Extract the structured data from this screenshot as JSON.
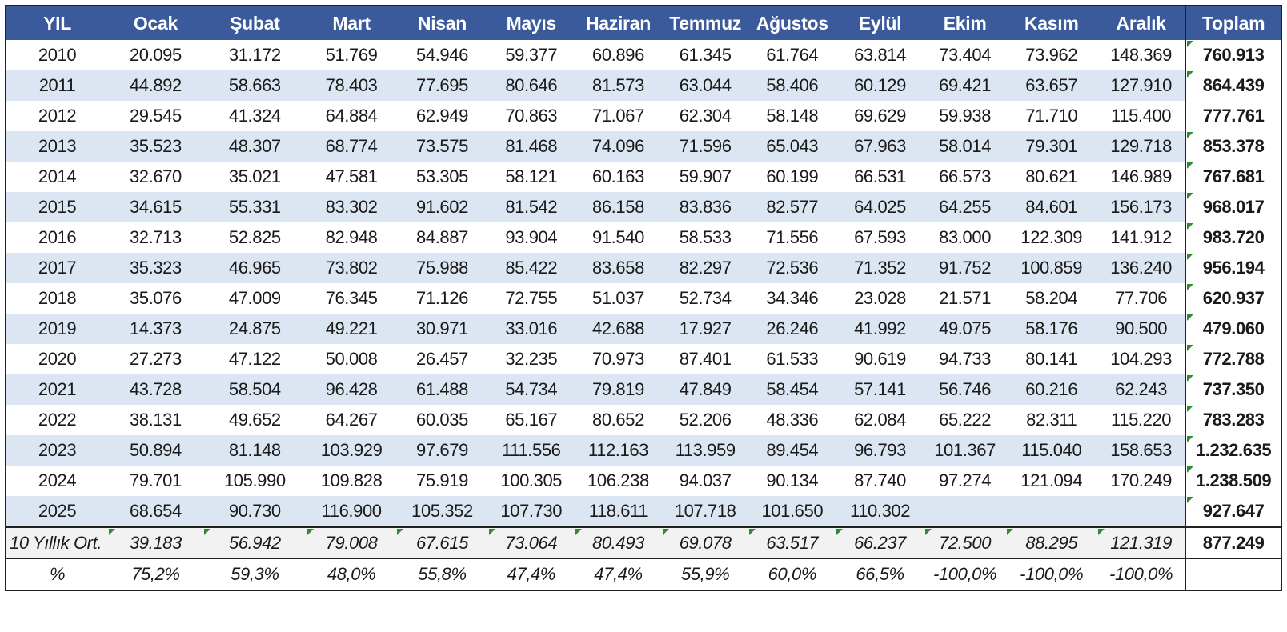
{
  "headers": [
    "YIL",
    "Ocak",
    "Şubat",
    "Mart",
    "Nisan",
    "Mayıs",
    "Haziran",
    "Temmuz",
    "Ağustos",
    "Eylül",
    "Ekim",
    "Kasım",
    "Aralık",
    "Toplam"
  ],
  "rows": [
    {
      "year": "2010",
      "values": [
        "20.095",
        "31.172",
        "51.769",
        "54.946",
        "59.377",
        "60.896",
        "61.345",
        "61.764",
        "63.814",
        "73.404",
        "73.962",
        "148.369"
      ],
      "total": "760.913"
    },
    {
      "year": "2011",
      "values": [
        "44.892",
        "58.663",
        "78.403",
        "77.695",
        "80.646",
        "81.573",
        "63.044",
        "58.406",
        "60.129",
        "69.421",
        "63.657",
        "127.910"
      ],
      "total": "864.439"
    },
    {
      "year": "2012",
      "values": [
        "29.545",
        "41.324",
        "64.884",
        "62.949",
        "70.863",
        "71.067",
        "62.304",
        "58.148",
        "69.629",
        "59.938",
        "71.710",
        "115.400"
      ],
      "total": "777.761"
    },
    {
      "year": "2013",
      "values": [
        "35.523",
        "48.307",
        "68.774",
        "73.575",
        "81.468",
        "74.096",
        "71.596",
        "65.043",
        "67.963",
        "58.014",
        "79.301",
        "129.718"
      ],
      "total": "853.378"
    },
    {
      "year": "2014",
      "values": [
        "32.670",
        "35.021",
        "47.581",
        "53.305",
        "58.121",
        "60.163",
        "59.907",
        "60.199",
        "66.531",
        "66.573",
        "80.621",
        "146.989"
      ],
      "total": "767.681"
    },
    {
      "year": "2015",
      "values": [
        "34.615",
        "55.331",
        "83.302",
        "91.602",
        "81.542",
        "86.158",
        "83.836",
        "82.577",
        "64.025",
        "64.255",
        "84.601",
        "156.173"
      ],
      "total": "968.017"
    },
    {
      "year": "2016",
      "values": [
        "32.713",
        "52.825",
        "82.948",
        "84.887",
        "93.904",
        "91.540",
        "58.533",
        "71.556",
        "67.593",
        "83.000",
        "122.309",
        "141.912"
      ],
      "total": "983.720"
    },
    {
      "year": "2017",
      "values": [
        "35.323",
        "46.965",
        "73.802",
        "75.988",
        "85.422",
        "83.658",
        "82.297",
        "72.536",
        "71.352",
        "91.752",
        "100.859",
        "136.240"
      ],
      "total": "956.194"
    },
    {
      "year": "2018",
      "values": [
        "35.076",
        "47.009",
        "76.345",
        "71.126",
        "72.755",
        "51.037",
        "52.734",
        "34.346",
        "23.028",
        "21.571",
        "58.204",
        "77.706"
      ],
      "total": "620.937"
    },
    {
      "year": "2019",
      "values": [
        "14.373",
        "24.875",
        "49.221",
        "30.971",
        "33.016",
        "42.688",
        "17.927",
        "26.246",
        "41.992",
        "49.075",
        "58.176",
        "90.500"
      ],
      "total": "479.060"
    },
    {
      "year": "2020",
      "values": [
        "27.273",
        "47.122",
        "50.008",
        "26.457",
        "32.235",
        "70.973",
        "87.401",
        "61.533",
        "90.619",
        "94.733",
        "80.141",
        "104.293"
      ],
      "total": "772.788"
    },
    {
      "year": "2021",
      "values": [
        "43.728",
        "58.504",
        "96.428",
        "61.488",
        "54.734",
        "79.819",
        "47.849",
        "58.454",
        "57.141",
        "56.746",
        "60.216",
        "62.243"
      ],
      "total": "737.350"
    },
    {
      "year": "2022",
      "values": [
        "38.131",
        "49.652",
        "64.267",
        "60.035",
        "65.167",
        "80.652",
        "52.206",
        "48.336",
        "62.084",
        "65.222",
        "82.311",
        "115.220"
      ],
      "total": "783.283"
    },
    {
      "year": "2023",
      "values": [
        "50.894",
        "81.148",
        "103.929",
        "97.679",
        "111.556",
        "112.163",
        "113.959",
        "89.454",
        "96.793",
        "101.367",
        "115.040",
        "158.653"
      ],
      "total": "1.232.635"
    },
    {
      "year": "2024",
      "values": [
        "79.701",
        "105.990",
        "109.828",
        "75.919",
        "100.305",
        "106.238",
        "94.037",
        "90.134",
        "87.740",
        "97.274",
        "121.094",
        "170.249"
      ],
      "total": "1.238.509"
    },
    {
      "year": "2025",
      "values": [
        "68.654",
        "90.730",
        "116.900",
        "105.352",
        "107.730",
        "118.611",
        "107.718",
        "101.650",
        "110.302",
        "",
        "",
        ""
      ],
      "total": "927.647"
    }
  ],
  "average": {
    "label": "10 Yıllık Ort.",
    "values": [
      "39.183",
      "56.942",
      "79.008",
      "67.615",
      "73.064",
      "80.493",
      "69.078",
      "63.517",
      "66.237",
      "72.500",
      "88.295",
      "121.319"
    ],
    "total": "877.249"
  },
  "percent": {
    "label": "%",
    "values": [
      "75,2%",
      "59,3%",
      "48,0%",
      "55,8%",
      "47,4%",
      "47,4%",
      "55,9%",
      "60,0%",
      "66,5%",
      "-100,0%",
      "-100,0%",
      "-100,0%"
    ],
    "total": ""
  },
  "colors": {
    "header_bg": "#3a5a9c",
    "band_bg": "#dce6f2",
    "avg_bg": "#f2f2f2",
    "marker": "#2e8b2e"
  }
}
